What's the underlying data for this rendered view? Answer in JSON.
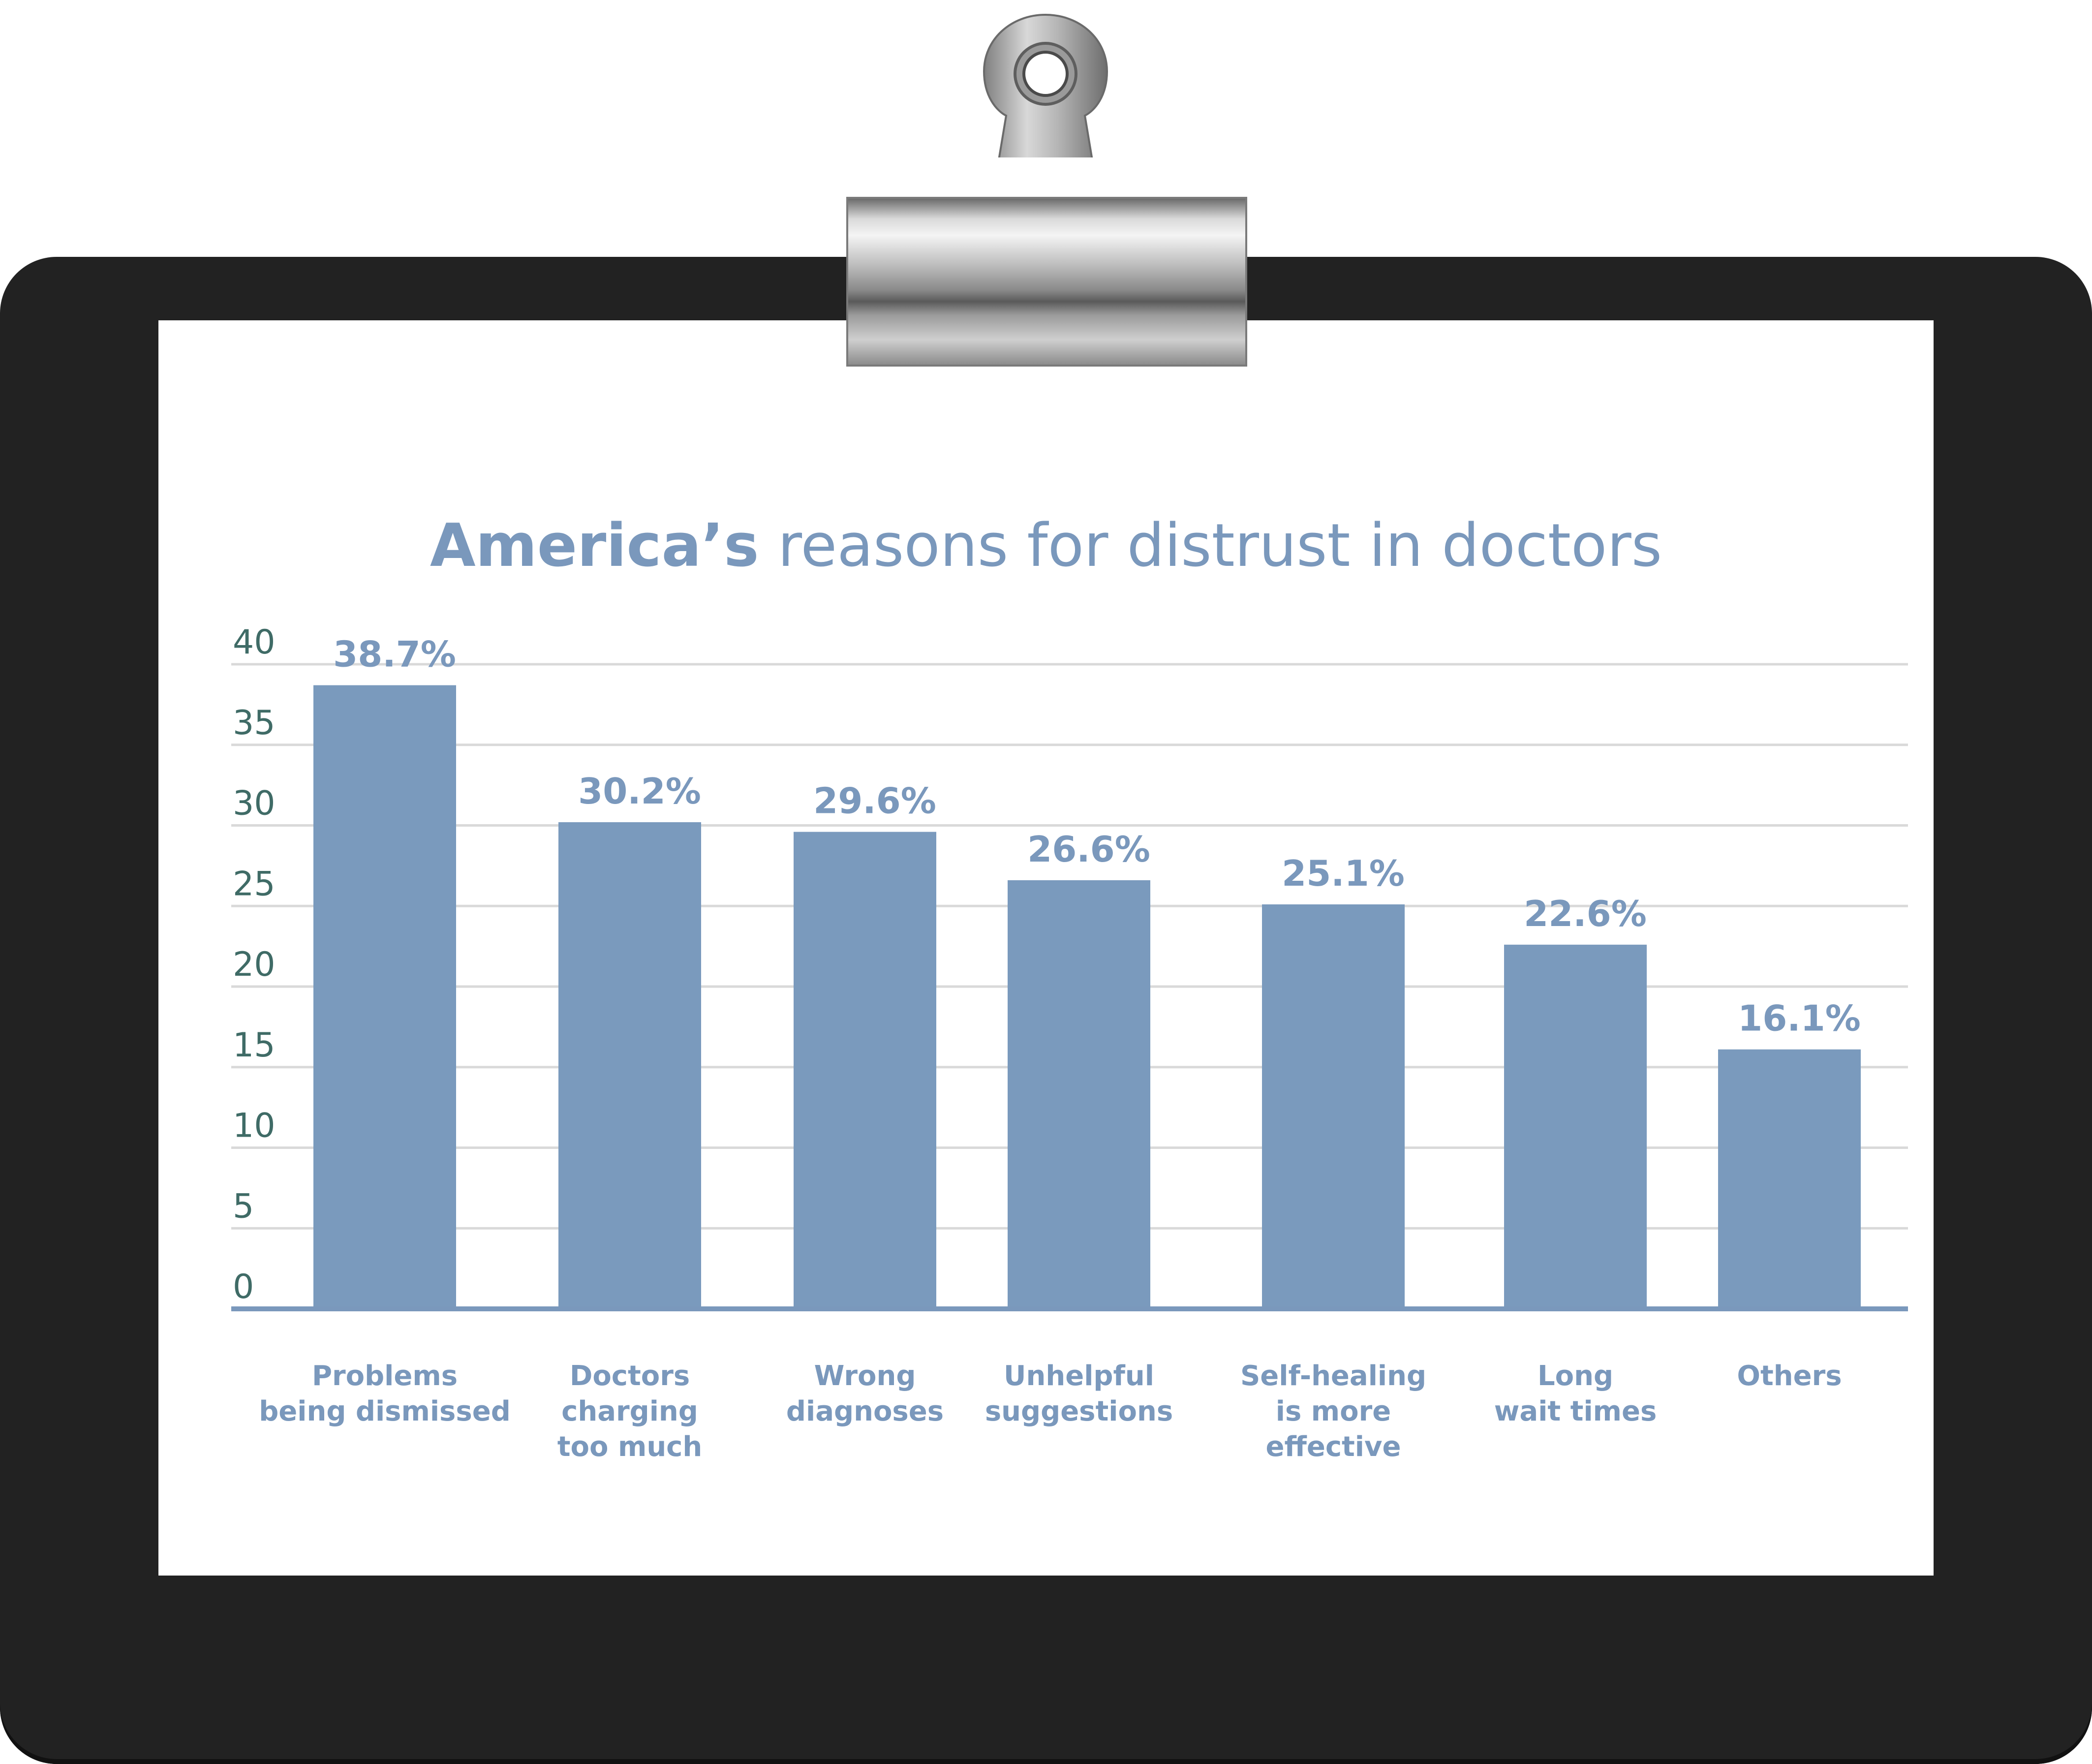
{
  "chart_data": {
    "type": "bar",
    "title_bold": "America’s",
    "title_rest": " reasons for distrust in doctors",
    "categories": [
      [
        "Problems",
        "being dismissed"
      ],
      [
        "Doctors",
        "charging",
        "too much"
      ],
      [
        "Wrong",
        "diagnoses"
      ],
      [
        "Unhelpful",
        "suggestions"
      ],
      [
        "Self-healing",
        "is more",
        "effective"
      ],
      [
        "Long",
        "wait times"
      ],
      [
        "Others"
      ]
    ],
    "values": [
      38.7,
      30.2,
      29.6,
      26.6,
      25.1,
      22.6,
      16.1
    ],
    "value_labels": [
      "38.7%",
      "30.2%",
      "29.6%",
      "26.6%",
      "25.1%",
      "22.6%",
      "16.1%"
    ],
    "yticks": [
      "0",
      "5",
      "10",
      "15",
      "20",
      "25",
      "30",
      "35",
      "40"
    ],
    "ylim": [
      0,
      40
    ],
    "grid": true,
    "bar_color": "#7a9abd",
    "grid_color": "#d9d9d9",
    "axis_color": "#7a98bc"
  }
}
